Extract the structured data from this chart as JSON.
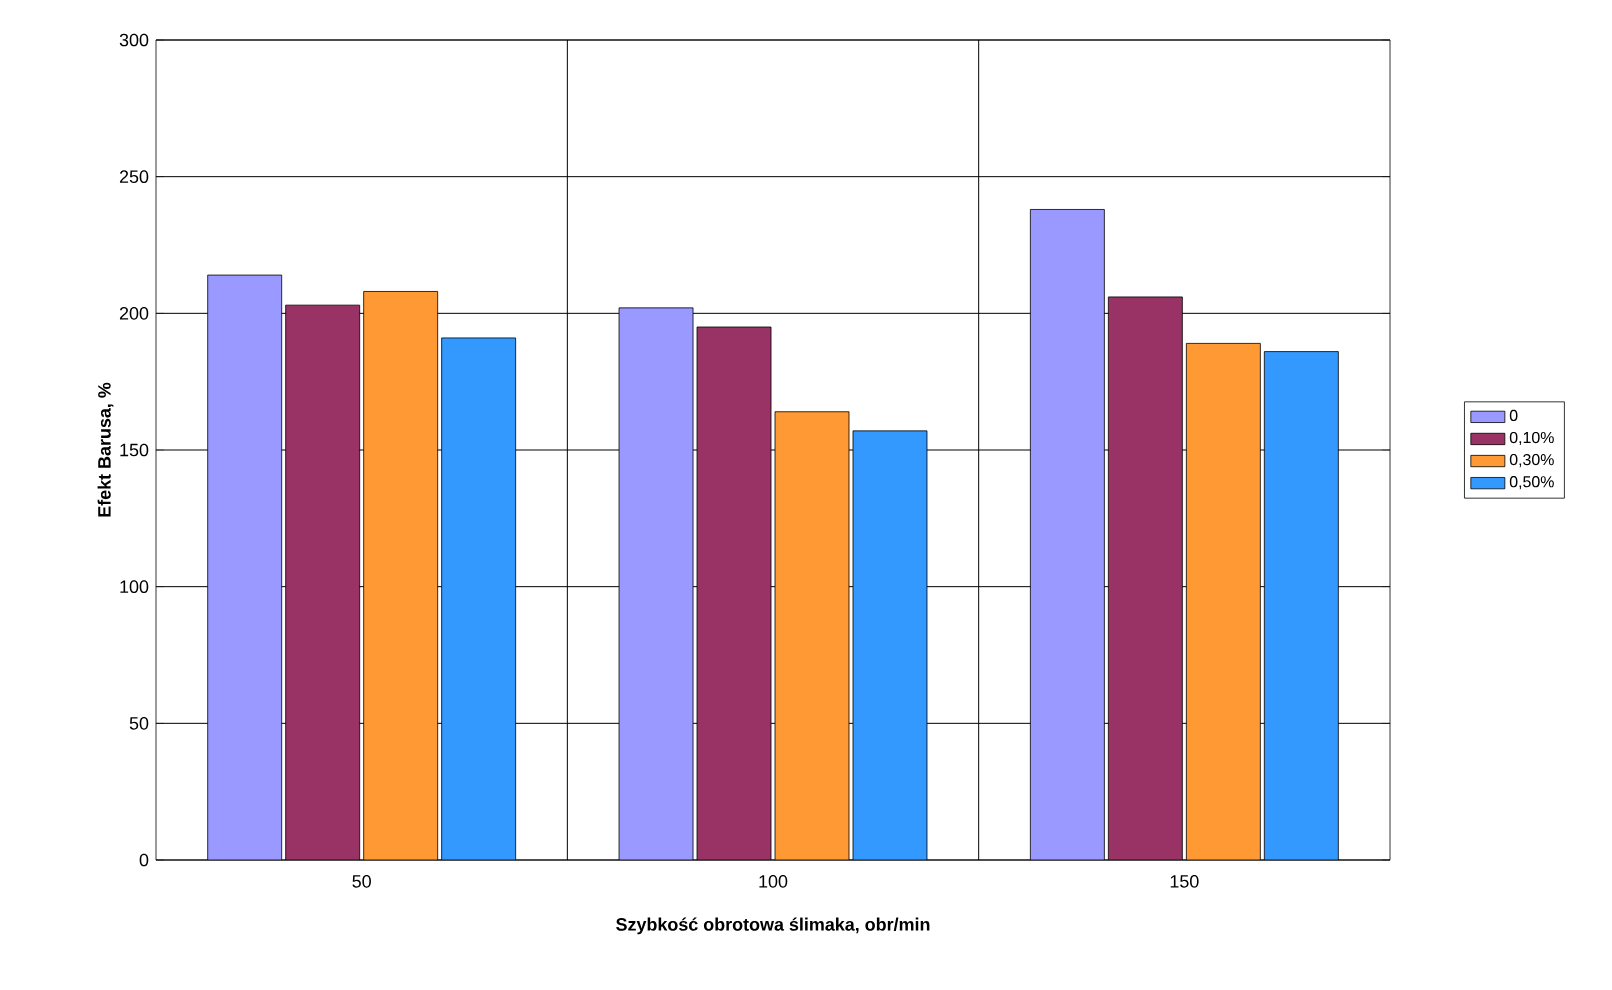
{
  "chart_data": {
    "type": "bar",
    "xlabel": "Szybkość obrotowa ślimaka, obr/min",
    "ylabel": "Efekt Barusa, %",
    "categories": [
      "50",
      "100",
      "150"
    ],
    "series": [
      {
        "name": "0",
        "color": "#9999ff",
        "values": [
          214,
          202,
          238
        ]
      },
      {
        "name": "0,10%",
        "color": "#993366",
        "values": [
          203,
          195,
          206
        ]
      },
      {
        "name": "0,30%",
        "color": "#ff9933",
        "values": [
          208,
          164,
          189
        ]
      },
      {
        "name": "0,50%",
        "color": "#3399ff",
        "values": [
          191,
          157,
          186
        ]
      }
    ],
    "ylim": [
      0,
      300
    ],
    "yticks": [
      0,
      50,
      100,
      150,
      200,
      250,
      300
    ],
    "grid": true,
    "legend": "right"
  }
}
